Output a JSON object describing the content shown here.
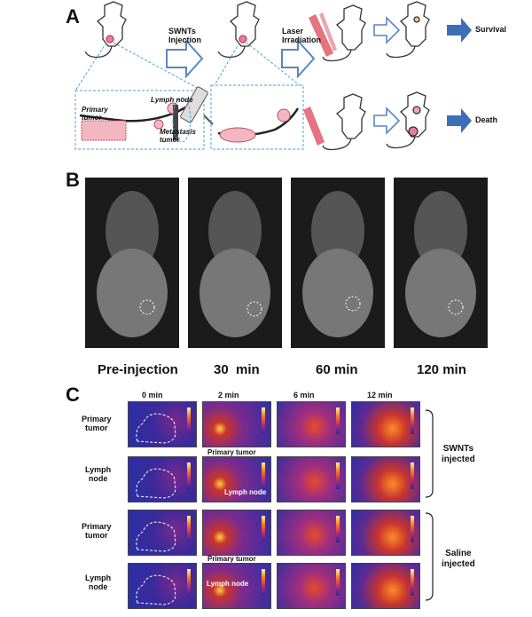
{
  "panelA": {
    "letter": "A",
    "step1": "SWNTs\nInjection",
    "step2": "Laser\nIrradiation",
    "outcome_top": "Survival",
    "outcome_bottom": "Death",
    "inset_labels": {
      "primary_tumor": "Primary\ntumor",
      "lymph_node": "Lymph node",
      "metastasis": "Metastasis\ntumor"
    }
  },
  "panelB": {
    "letter": "B",
    "time_labels": [
      "Pre-injection",
      "30  min",
      "60 min",
      "120 min"
    ]
  },
  "panelC": {
    "letter": "C",
    "time_headers": [
      "0 min",
      "2 min",
      "6 min",
      "12 min"
    ],
    "row_labels": [
      "Primary\ntumor",
      "Lymph\nnode",
      "Primary\ntumor",
      "Lymph\nnode"
    ],
    "group_labels": [
      "SWNTs\ninjected",
      "Saline\ninjected"
    ],
    "annotations": {
      "primary_tumor_1": "Primary tumor",
      "lymph_node_1": "Lymph node",
      "primary_tumor_2": "Primary tumor",
      "lymph_node_2": "Lymph node"
    }
  },
  "colors": {
    "arrow_fill": "#ffffff",
    "arrow_stroke": "#5b86c3",
    "outcome_arrow": "#3d6fb8",
    "laser": "#e05a6a",
    "inset_border": "#4aa3d6"
  }
}
